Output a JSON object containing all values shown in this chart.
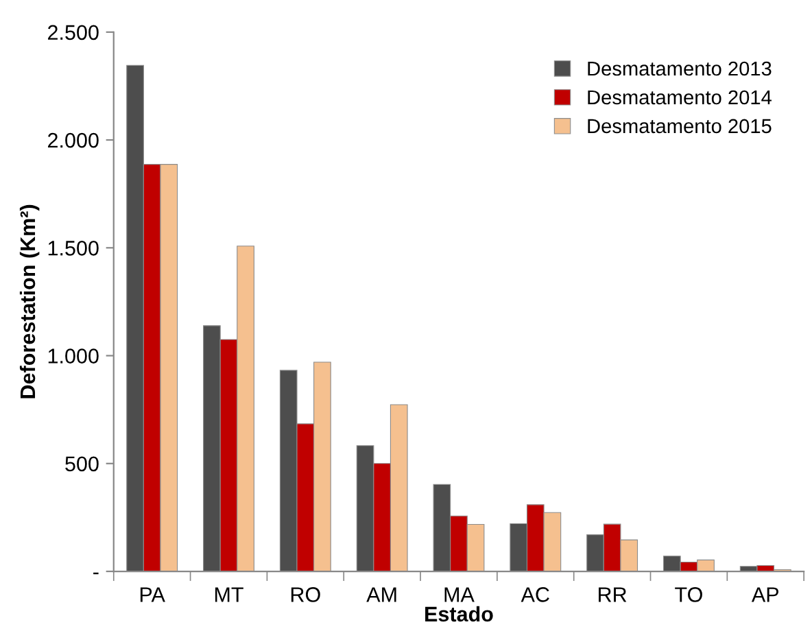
{
  "chart_data": {
    "type": "bar",
    "xlabel": "Estado",
    "ylabel": "Deforestation (Km²)",
    "categories": [
      "PA",
      "MT",
      "RO",
      "AM",
      "MA",
      "AC",
      "RR",
      "TO",
      "AP"
    ],
    "series": [
      {
        "name": "Desmatamento 2013",
        "color": "#4d4d4d",
        "values": [
          2346,
          1139,
          932,
          583,
          403,
          221,
          170,
          71,
          23
        ]
      },
      {
        "name": "Desmatamento 2014",
        "color": "#c00000",
        "values": [
          1887,
          1075,
          684,
          500,
          257,
          309,
          219,
          43,
          27
        ]
      },
      {
        "name": "Desmatamento 2015",
        "color": "#f5c08f",
        "values": [
          1887,
          1508,
          970,
          773,
          218,
          273,
          146,
          53,
          8
        ]
      }
    ],
    "ylim": [
      0,
      2500
    ],
    "yticks": [
      {
        "value": 0,
        "label": "-"
      },
      {
        "value": 500,
        "label": "500"
      },
      {
        "value": 1000,
        "label": "1.000"
      },
      {
        "value": 1500,
        "label": "1.500"
      },
      {
        "value": 2000,
        "label": "2.000"
      },
      {
        "value": 2500,
        "label": "2.500"
      }
    ],
    "grid": false,
    "legend": "top right"
  }
}
